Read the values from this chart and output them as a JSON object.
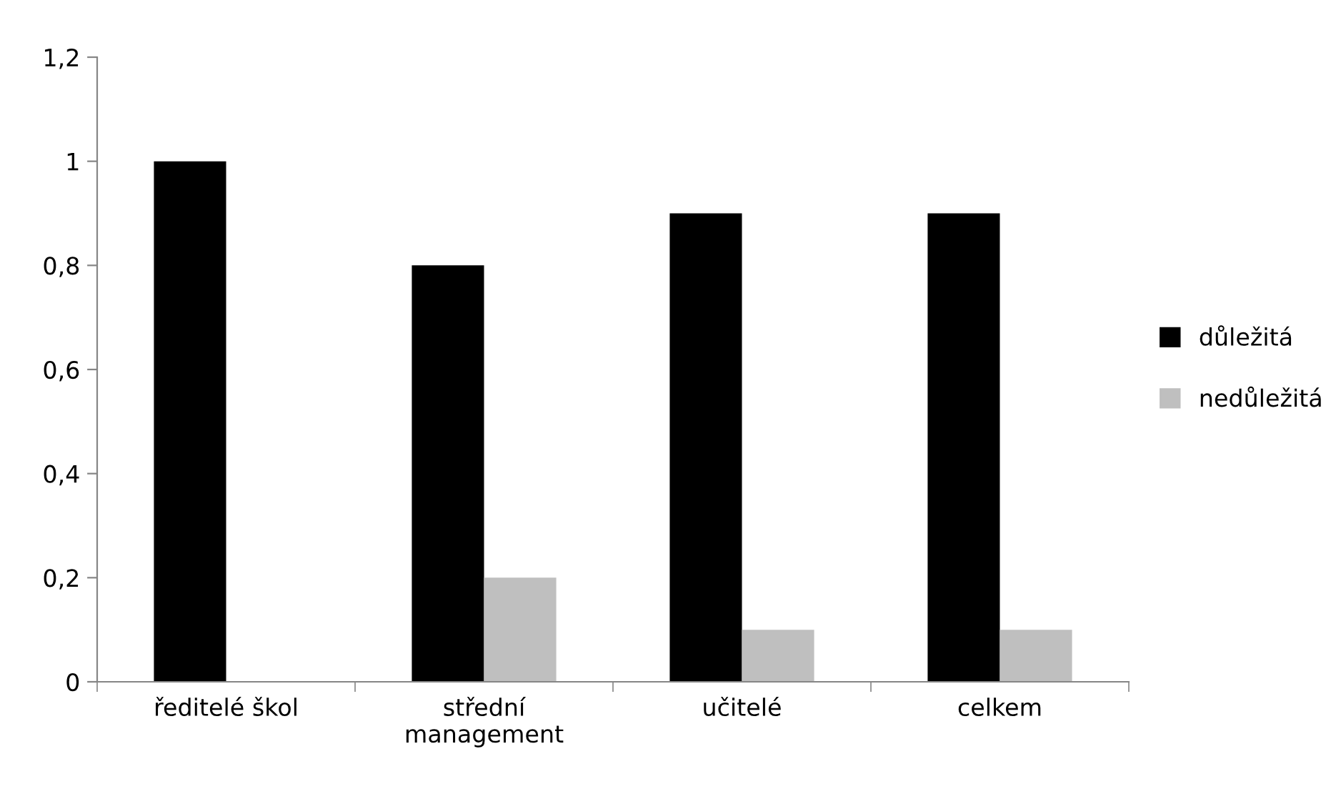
{
  "chart_data": {
    "type": "bar",
    "categories": [
      "ředitelé škol",
      "střední management",
      "učitelé",
      "celkem"
    ],
    "series": [
      {
        "name": "důležitá",
        "color": "#000000",
        "values": [
          1,
          0.8,
          0.9,
          0.9
        ]
      },
      {
        "name": "nedůležitá",
        "color": "#bfbfbf",
        "values": [
          0,
          0.2,
          0.1,
          0.1
        ]
      }
    ],
    "ylim": [
      0,
      1.2
    ],
    "yticks": [
      0,
      {
        "value": 0.2,
        "label": "0,2"
      },
      {
        "value": 0.4,
        "label": "0,4"
      },
      {
        "value": 0.6,
        "label": "0,6"
      },
      {
        "value": 0.8,
        "label": "0,8"
      },
      1,
      {
        "value": 1.2,
        "label": "1,2"
      }
    ],
    "grid": false,
    "legend": "right"
  }
}
